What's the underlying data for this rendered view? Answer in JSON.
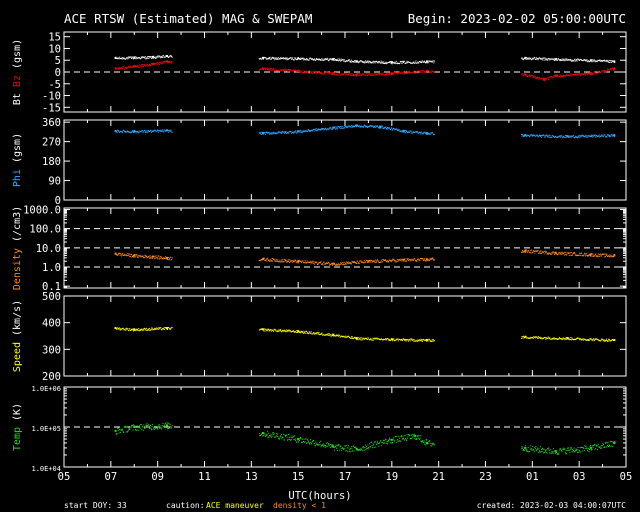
{
  "header": {
    "title": "ACE RTSW (Estimated) MAG & SWEPAM",
    "begin": "Begin: 2023-02-02 05:00:00UTC"
  },
  "footer": {
    "start_doy_label": "start DOY:",
    "start_doy": "33",
    "caution_label": "caution:",
    "caution_maneuver": "ACE maneuver",
    "caution_density": "density < 1",
    "created": "created: 2023-02-03 04:00:07UTC"
  },
  "colors": {
    "background": "#000000",
    "axis": "#ffffff",
    "bt": "#ffffff",
    "bz": "#ff0000",
    "phi": "#33aaff",
    "density": "#ff8c1a",
    "speed": "#ffff00",
    "temp": "#22dd22",
    "caution_maneuver": "#ffff00",
    "caution_density": "#ff8c1a"
  },
  "chart_data": {
    "type": "line",
    "x_label": "UTC(hours)",
    "x_range_hours": [
      0,
      24
    ],
    "x_ticks": [
      "05",
      "07",
      "09",
      "11",
      "13",
      "15",
      "17",
      "19",
      "21",
      "23",
      "01",
      "03",
      "05"
    ],
    "gap_hours": [
      [
        4.6,
        8.3
      ],
      [
        15.8,
        19.5
      ]
    ],
    "panels": [
      {
        "id": "mag",
        "ylabel_parts": [
          "Bt",
          "Bz",
          "(gsm)"
        ],
        "scale": "linear",
        "ylim": [
          -17,
          17
        ],
        "y_ticks": [
          15,
          10,
          5,
          0,
          -5,
          -10,
          -15
        ],
        "ref_lines": [
          0
        ],
        "series": [
          {
            "name": "Bt",
            "color_key": "bt",
            "points": [
              [
                2.2,
                6.0
              ],
              [
                3.0,
                6.2
              ],
              [
                3.8,
                6.4
              ],
              [
                4.4,
                6.8
              ],
              [
                8.5,
                6.0
              ],
              [
                10.0,
                5.8
              ],
              [
                11.5,
                5.5
              ],
              [
                12.5,
                4.6
              ],
              [
                14.0,
                4.2
              ],
              [
                15.5,
                4.5
              ],
              [
                19.7,
                6.0
              ],
              [
                21.0,
                5.5
              ],
              [
                22.5,
                5.0
              ],
              [
                23.5,
                4.5
              ]
            ]
          },
          {
            "name": "Bz",
            "color_key": "bz",
            "points": [
              [
                2.2,
                1.5
              ],
              [
                3.0,
                2.5
              ],
              [
                3.8,
                3.5
              ],
              [
                4.4,
                4.5
              ],
              [
                8.5,
                1.5
              ],
              [
                10.0,
                0.5
              ],
              [
                11.5,
                -0.5
              ],
              [
                12.5,
                -1.0
              ],
              [
                14.0,
                -0.5
              ],
              [
                15.5,
                0.5
              ],
              [
                19.7,
                -1.0
              ],
              [
                20.5,
                -3.0
              ],
              [
                21.0,
                -1.5
              ],
              [
                22.5,
                -0.5
              ],
              [
                23.5,
                1.5
              ]
            ]
          }
        ]
      },
      {
        "id": "phi",
        "ylabel": "Phi (gsm)",
        "scale": "linear",
        "ylim": [
          0,
          370
        ],
        "y_ticks": [
          360,
          270,
          180,
          90,
          0
        ],
        "ref_lines": [],
        "series": [
          {
            "name": "Phi",
            "color_key": "phi",
            "points": [
              [
                2.2,
                320
              ],
              [
                3.0,
                318
              ],
              [
                4.4,
                322
              ],
              [
                8.5,
                310
              ],
              [
                10.0,
                318
              ],
              [
                11.5,
                335
              ],
              [
                12.5,
                345
              ],
              [
                13.5,
                340
              ],
              [
                14.5,
                320
              ],
              [
                15.5,
                310
              ],
              [
                19.7,
                300
              ],
              [
                21.5,
                295
              ],
              [
                23.5,
                300
              ]
            ]
          }
        ]
      },
      {
        "id": "density",
        "ylabel": "Density (/cm3)",
        "scale": "log",
        "ylim": [
          0.08,
          1200
        ],
        "y_ticks": [
          1000.0,
          100.0,
          10.0,
          1.0,
          0.1
        ],
        "y_tick_labels": [
          "1000.0",
          "100.0",
          "10.0",
          "1.0",
          "0.1"
        ],
        "ref_lines": [
          100,
          10,
          1
        ],
        "series": [
          {
            "name": "Density",
            "color_key": "density",
            "points": [
              [
                2.2,
                5.0
              ],
              [
                3.0,
                4.0
              ],
              [
                3.8,
                3.5
              ],
              [
                4.4,
                3.0
              ],
              [
                8.5,
                2.6
              ],
              [
                10.0,
                2.0
              ],
              [
                11.5,
                1.5
              ],
              [
                13.0,
                2.0
              ],
              [
                14.5,
                2.4
              ],
              [
                15.5,
                2.5
              ],
              [
                19.7,
                7.0
              ],
              [
                21.0,
                5.5
              ],
              [
                22.5,
                4.5
              ],
              [
                23.5,
                4.0
              ]
            ]
          }
        ]
      },
      {
        "id": "speed",
        "ylabel": "Speed (km/s)",
        "scale": "linear",
        "ylim": [
          200,
          500
        ],
        "y_ticks": [
          500,
          400,
          300,
          200
        ],
        "ref_lines": [],
        "series": [
          {
            "name": "Speed",
            "color_key": "speed",
            "points": [
              [
                2.2,
                380
              ],
              [
                3.0,
                375
              ],
              [
                4.4,
                380
              ],
              [
                8.5,
                375
              ],
              [
                10.0,
                368
              ],
              [
                11.5,
                355
              ],
              [
                12.5,
                342
              ],
              [
                14.0,
                338
              ],
              [
                15.5,
                335
              ],
              [
                19.7,
                347
              ],
              [
                21.5,
                342
              ],
              [
                23.5,
                335
              ]
            ]
          }
        ]
      },
      {
        "id": "temp",
        "ylabel": "Temp (K)",
        "scale": "log",
        "ylim": [
          10000,
          1000000
        ],
        "y_ticks": [
          1000000,
          100000,
          10000
        ],
        "y_tick_labels": [
          "1.0E+06",
          "1.0E+05",
          "1.0E+04"
        ],
        "ref_lines": [
          100000
        ],
        "series": [
          {
            "name": "Temp",
            "color_key": "temp",
            "points": [
              [
                2.2,
                80000
              ],
              [
                3.0,
                100000
              ],
              [
                4.4,
                110000
              ],
              [
                8.5,
                70000
              ],
              [
                10.0,
                50000
              ],
              [
                11.5,
                32000
              ],
              [
                12.5,
                28000
              ],
              [
                14.0,
                48000
              ],
              [
                15.0,
                60000
              ],
              [
                15.5,
                40000
              ],
              [
                19.7,
                30000
              ],
              [
                21.0,
                25000
              ],
              [
                22.5,
                30000
              ],
              [
                23.5,
                40000
              ]
            ]
          }
        ]
      }
    ]
  }
}
